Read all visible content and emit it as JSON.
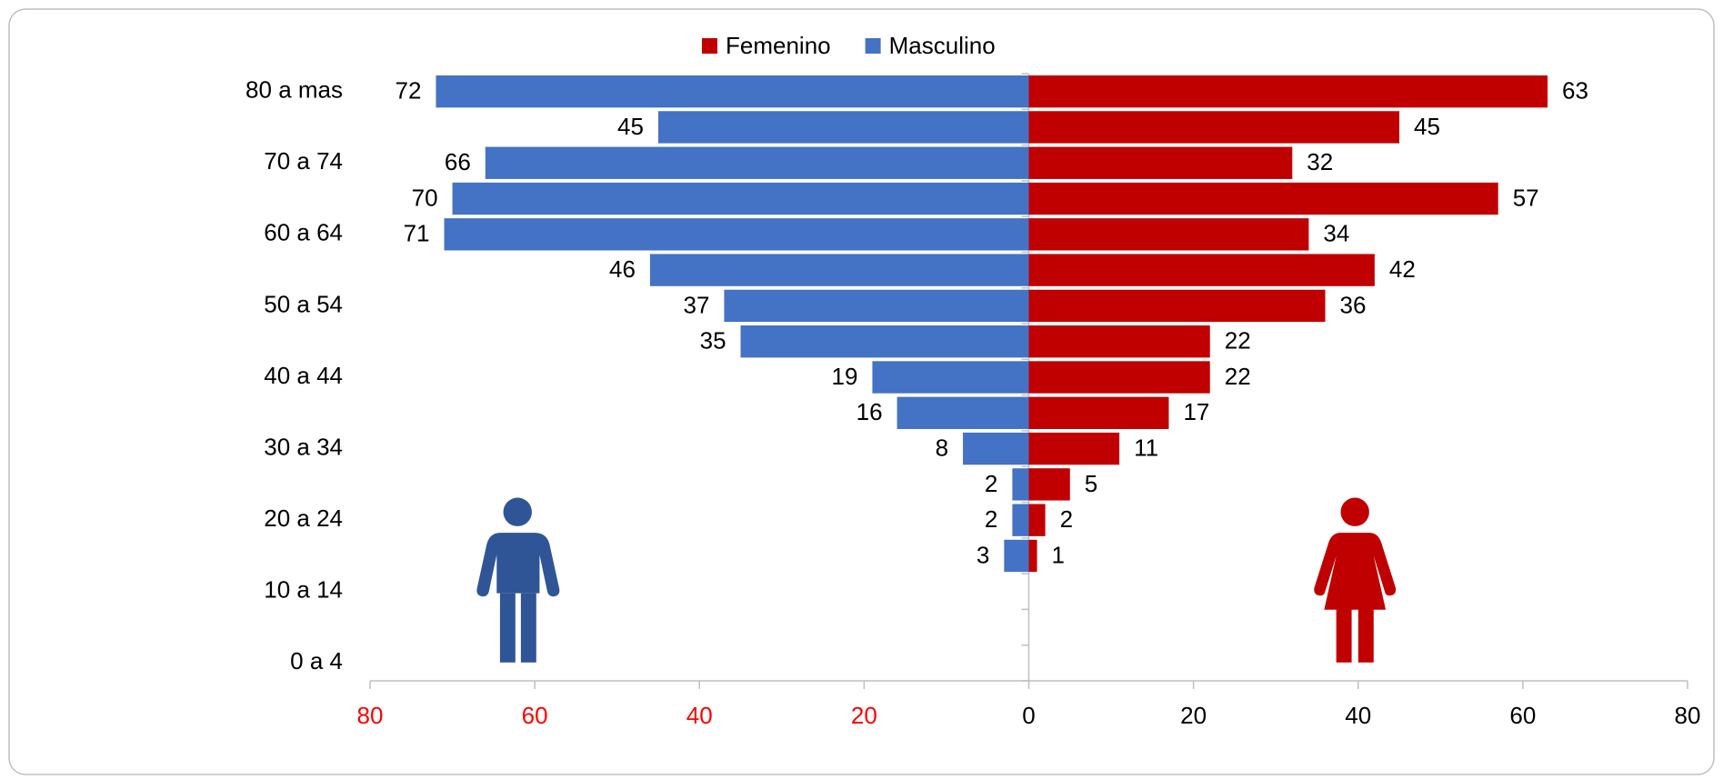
{
  "chart_data": {
    "type": "pyramid",
    "categories": [
      "80 a mas",
      null,
      "70 a 74",
      null,
      "60 a 64",
      null,
      "50 a 54",
      null,
      "40 a 44",
      null,
      "30 a 34",
      null,
      "20 a 24",
      null,
      "10 a 14",
      null,
      "0 a 4"
    ],
    "series": [
      {
        "name": "Femenino",
        "color": "#c00000",
        "side": "right",
        "values": [
          63,
          45,
          32,
          57,
          34,
          42,
          36,
          22,
          22,
          17,
          11,
          5,
          2,
          1,
          null,
          null,
          null
        ]
      },
      {
        "name": "Masculino",
        "color": "#4472c4",
        "side": "left",
        "values": [
          72,
          45,
          66,
          70,
          71,
          46,
          37,
          35,
          19,
          16,
          8,
          2,
          2,
          3,
          null,
          null,
          null
        ]
      }
    ],
    "xlim": [
      -80,
      80
    ],
    "xticks": [
      {
        "value": -80,
        "label": "80"
      },
      {
        "value": -60,
        "label": "60"
      },
      {
        "value": -40,
        "label": "40"
      },
      {
        "value": -20,
        "label": "20"
      },
      0,
      20,
      40,
      60,
      80
    ],
    "left_tick_color": "#ff0000",
    "legend": "top"
  }
}
